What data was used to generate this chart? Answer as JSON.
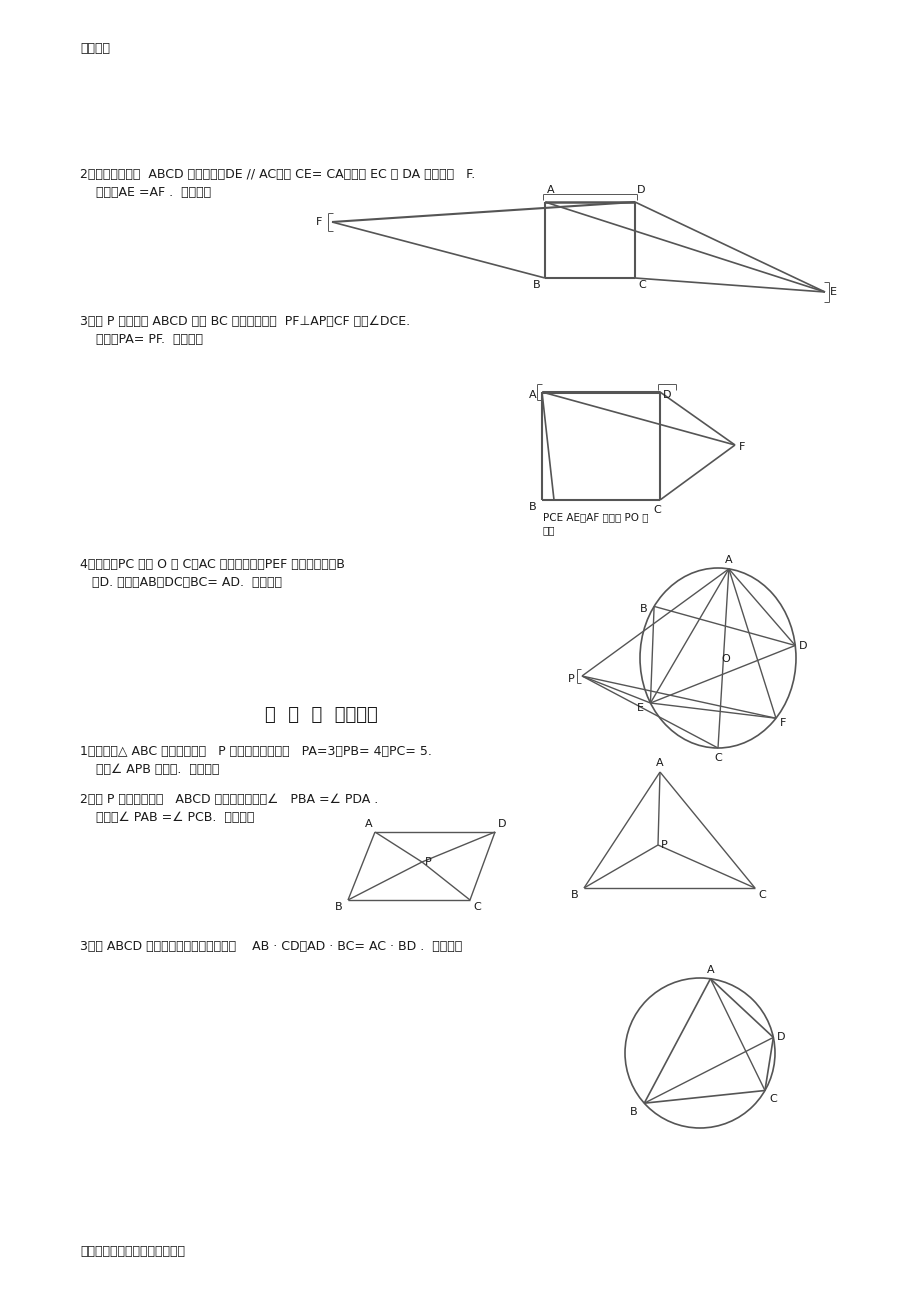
{
  "bg_color": "#ffffff",
  "text_color": "#1a1a1a",
  "line_color": "#555555",
  "header": "学习资料",
  "footer": "各种学习资料，仅供学习与交流",
  "q2_line1": "2、如图，四边形  ABCD 为正方形，DE // AC，且 CE= CA，直线 EC 交 DA 延长线于   F.",
  "q2_line2": "    求证：AE =AF .  （初二）",
  "q3_line1": "3、设 P 是正方形 ABCD 一边 BC 上的任一点，  PF⊥AP，CF 平分∠DCE.",
  "q3_line2": "    求证：PA= PF.  （初二）",
  "q4_line1": "4、如图，PC 切圆 O 于 C，AC 为圆的直径，PEF 为圆的割线，B",
  "q4_line2": "   、D. 求证：AB＝DC，BC= AD.  （初三）",
  "note1": "PCE AE、AF 与直线 PO 相",
  "note2": "交于",
  "section_title": "经  典  难  题（四）",
  "s1_line1": "1、已知：△ ABC 是正三角形，   P 是三角形内一点，   PA=3，PB= 4，PC= 5.",
  "s1_line2": "    求：∠ APB 的度数.  （初二）",
  "s2_line1": "2、设 P 是平行四边形   ABCD 内部的一点，且∠   PBA =∠ PDA .",
  "s2_line2": "    求证：∠ PAB =∠ PCB.  （初二）",
  "s3_line1": "3、设 ABCD 为圆内接凸四边形，求证：    AB · CD＋AD · BC= AC · BD .  （初三）"
}
